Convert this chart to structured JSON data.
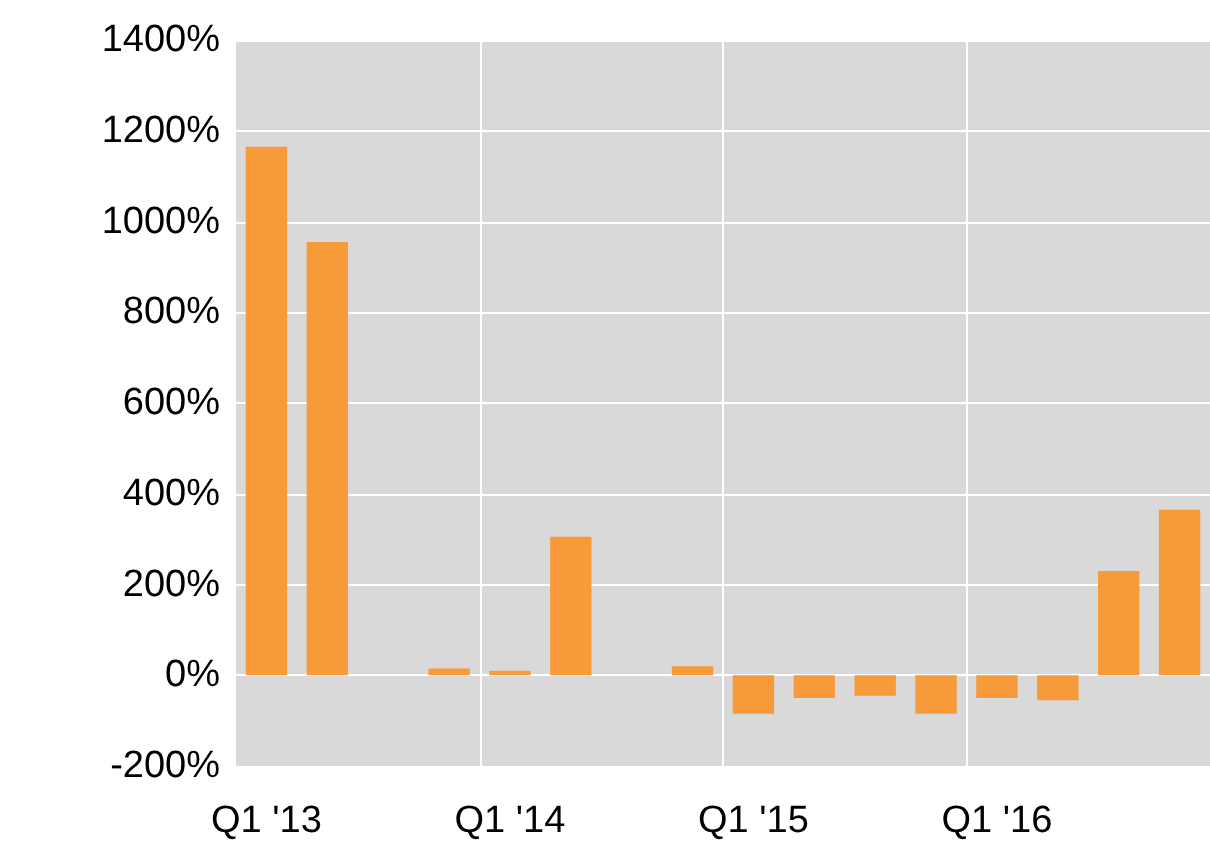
{
  "chart_data": {
    "type": "bar",
    "categories": [
      "Q1 '13",
      null,
      null,
      null,
      "Q1 '14",
      null,
      null,
      null,
      "Q1 '15",
      null,
      null,
      null,
      "Q1 '16",
      null,
      null,
      null
    ],
    "values": [
      1165,
      955,
      null,
      15,
      10,
      305,
      null,
      20,
      -85,
      -50,
      -45,
      -85,
      -50,
      -55,
      230,
      365
    ],
    "color": "#f79a3a",
    "ylim": [
      -200,
      1400
    ],
    "yticks": [
      {
        "value": -200,
        "label": "-200%"
      },
      {
        "value": 0,
        "label": "0%"
      },
      {
        "value": 200,
        "label": "200%"
      },
      {
        "value": 400,
        "label": "400%"
      },
      {
        "value": 600,
        "label": "600%"
      },
      {
        "value": 800,
        "label": "800%"
      },
      {
        "value": 1000,
        "label": "1000%"
      },
      {
        "value": 1200,
        "label": "1200%"
      },
      {
        "value": 1400,
        "label": "1400%"
      }
    ],
    "grid": true
  }
}
